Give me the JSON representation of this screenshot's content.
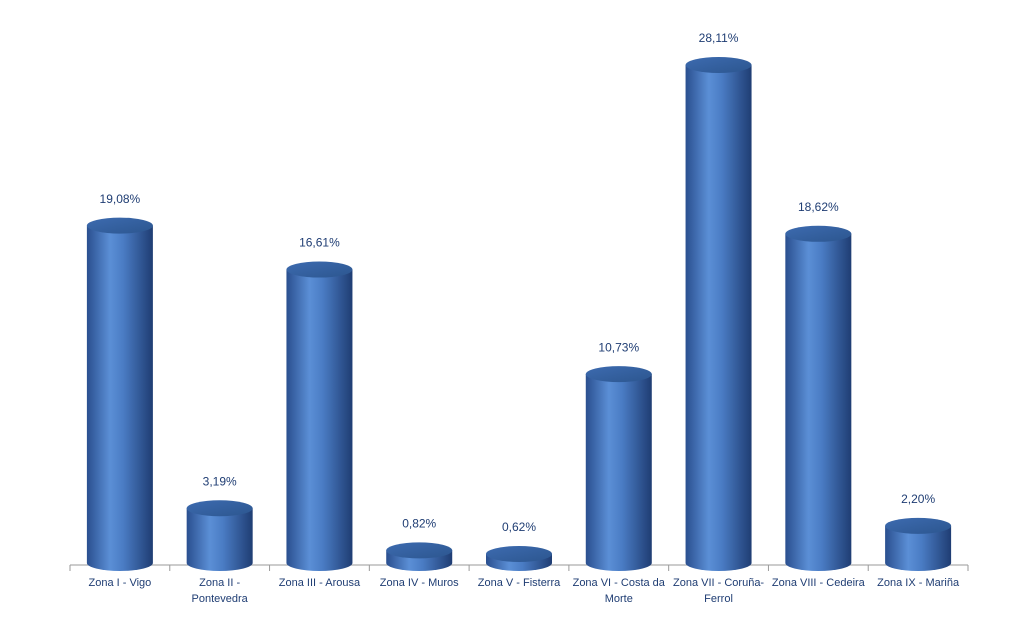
{
  "chart_data": {
    "type": "bar",
    "categories": [
      "Zona I - Vigo",
      "Zona II - Pontevedra",
      "Zona III - Arousa",
      "Zona IV - Muros",
      "Zona V - Fisterra",
      "Zona VI - Costa da Morte",
      "Zona VII - Coruña-Ferrol",
      "Zona VIII - Cedeira",
      "Zona IX - Mariña"
    ],
    "values": [
      19.08,
      3.19,
      16.61,
      0.82,
      0.62,
      10.73,
      28.11,
      18.62,
      2.2
    ],
    "value_labels": [
      "19,08%",
      "3,19%",
      "16,61%",
      "0,82%",
      "0,62%",
      "10,73%",
      "28,11%",
      "18,62%",
      "2,20%"
    ],
    "color": "#4a7cc4"
  }
}
